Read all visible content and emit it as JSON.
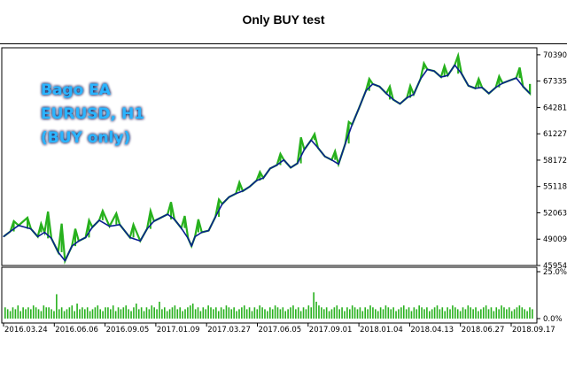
{
  "page": {
    "title": "Only BUY test"
  },
  "overlay": {
    "lines": [
      "Bago EA",
      "EURUSD, H1",
      "(BUY only)"
    ]
  },
  "colors": {
    "background": "#ffffff",
    "frame": "#000000",
    "equity": "#0a1f8f",
    "balance": "#27b11d",
    "volume": "#27b11d",
    "overlay_text": "#2ab4ff",
    "overlay_glow": "#0b1b5a"
  },
  "chart_data": [
    {
      "type": "line",
      "title": "Only BUY test",
      "x": [
        "2016.03.24",
        "2016.06.06",
        "2016.09.05",
        "2017.01.09",
        "2017.03.27",
        "2017.06.05",
        "2017.09.01",
        "2018.01.04",
        "2018.04.13",
        "2018.06.27",
        "2018.09.17"
      ],
      "y_ticks": [
        45954,
        49009,
        52063,
        55118,
        58172,
        61227,
        64281,
        67335,
        70390
      ],
      "ylim": [
        45954,
        71200
      ],
      "series": [
        {
          "role": "equity",
          "values": [
            [
              0,
              49300
            ],
            [
              0.1,
              49900
            ],
            [
              0.22,
              50600
            ],
            [
              0.4,
              50200
            ],
            [
              0.5,
              49300
            ],
            [
              0.6,
              49800
            ],
            [
              0.7,
              49100
            ],
            [
              0.8,
              47500
            ],
            [
              0.9,
              46500
            ],
            [
              1.0,
              48200
            ],
            [
              1.1,
              48800
            ],
            [
              1.2,
              49200
            ],
            [
              1.3,
              50400
            ],
            [
              1.4,
              51200
            ],
            [
              1.55,
              50500
            ],
            [
              1.7,
              50700
            ],
            [
              1.85,
              49200
            ],
            [
              2.0,
              48800
            ],
            [
              2.1,
              50200
            ],
            [
              2.2,
              51100
            ],
            [
              2.3,
              51500
            ],
            [
              2.4,
              51900
            ],
            [
              2.5,
              51300
            ],
            [
              2.6,
              50300
            ],
            [
              2.7,
              49100
            ],
            [
              2.75,
              48200
            ],
            [
              2.8,
              49300
            ],
            [
              2.9,
              49800
            ],
            [
              3.0,
              50000
            ],
            [
              3.1,
              51600
            ],
            [
              3.2,
              53100
            ],
            [
              3.3,
              53900
            ],
            [
              3.4,
              54300
            ],
            [
              3.5,
              54600
            ],
            [
              3.6,
              55100
            ],
            [
              3.7,
              55800
            ],
            [
              3.8,
              56100
            ],
            [
              3.9,
              57200
            ],
            [
              4.0,
              57600
            ],
            [
              4.1,
              58200
            ],
            [
              4.2,
              57300
            ],
            [
              4.3,
              57800
            ],
            [
              4.4,
              59400
            ],
            [
              4.5,
              60500
            ],
            [
              4.6,
              59600
            ],
            [
              4.7,
              58600
            ],
            [
              4.8,
              58200
            ],
            [
              4.9,
              57700
            ],
            [
              5.0,
              60100
            ],
            [
              5.1,
              62300
            ],
            [
              5.2,
              64200
            ],
            [
              5.3,
              66200
            ],
            [
              5.4,
              67000
            ],
            [
              5.5,
              66700
            ],
            [
              5.6,
              65900
            ],
            [
              5.7,
              65200
            ],
            [
              5.8,
              64700
            ],
            [
              5.9,
              65400
            ],
            [
              6.0,
              65800
            ],
            [
              6.1,
              67600
            ],
            [
              6.2,
              68700
            ],
            [
              6.3,
              68500
            ],
            [
              6.4,
              67800
            ],
            [
              6.5,
              68000
            ],
            [
              6.6,
              69200
            ],
            [
              6.7,
              68200
            ],
            [
              6.8,
              66800
            ],
            [
              6.9,
              66500
            ],
            [
              7.0,
              66600
            ],
            [
              7.1,
              65900
            ],
            [
              7.2,
              66600
            ],
            [
              7.3,
              67100
            ],
            [
              7.4,
              67400
            ],
            [
              7.5,
              67700
            ],
            [
              7.6,
              66700
            ],
            [
              7.7,
              65900
            ]
          ]
        },
        {
          "role": "balance",
          "values": [
            [
              0.15,
              51100
            ],
            [
              0.35,
              51500
            ],
            [
              0.55,
              50800
            ],
            [
              0.65,
              52200
            ],
            [
              0.85,
              50800
            ],
            [
              1.05,
              50200
            ],
            [
              1.25,
              51200
            ],
            [
              1.45,
              52300
            ],
            [
              1.65,
              52000
            ],
            [
              1.9,
              50700
            ],
            [
              2.15,
              52300
            ],
            [
              2.45,
              53300
            ],
            [
              2.65,
              51700
            ],
            [
              2.85,
              51300
            ],
            [
              3.15,
              53600
            ],
            [
              3.45,
              55600
            ],
            [
              3.75,
              56800
            ],
            [
              4.05,
              58900
            ],
            [
              4.35,
              60800
            ],
            [
              4.55,
              61200
            ],
            [
              4.85,
              59200
            ],
            [
              5.05,
              62600
            ],
            [
              5.35,
              67600
            ],
            [
              5.65,
              66700
            ],
            [
              5.95,
              66800
            ],
            [
              6.15,
              69400
            ],
            [
              6.45,
              69100
            ],
            [
              6.65,
              70300
            ],
            [
              6.95,
              67600
            ],
            [
              7.25,
              67900
            ],
            [
              7.55,
              68900
            ],
            [
              7.7,
              67000
            ]
          ]
        }
      ]
    },
    {
      "type": "bar",
      "y_ticks": [
        "25.0%",
        "0.0%"
      ],
      "ylim": [
        0,
        25
      ],
      "values": [
        6,
        5,
        4,
        6,
        5,
        7,
        4,
        6,
        5,
        6,
        5,
        7,
        6,
        5,
        4,
        7,
        6,
        6,
        5,
        4,
        13,
        5,
        6,
        4,
        5,
        6,
        7,
        4,
        8,
        5,
        6,
        5,
        6,
        4,
        5,
        6,
        7,
        5,
        4,
        6,
        6,
        5,
        7,
        4,
        6,
        5,
        6,
        7,
        5,
        4,
        6,
        8,
        5,
        6,
        4,
        6,
        5,
        7,
        6,
        5,
        9,
        5,
        6,
        4,
        5,
        6,
        7,
        5,
        6,
        4,
        5,
        6,
        7,
        8,
        5,
        6,
        4,
        6,
        5,
        7,
        6,
        5,
        6,
        4,
        6,
        5,
        7,
        6,
        5,
        6,
        4,
        5,
        6,
        7,
        5,
        6,
        4,
        6,
        5,
        7,
        6,
        5,
        4,
        6,
        5,
        7,
        6,
        5,
        6,
        4,
        5,
        6,
        7,
        5,
        6,
        4,
        6,
        5,
        7,
        6,
        14,
        9,
        7,
        6,
        5,
        6,
        4,
        5,
        6,
        7,
        5,
        6,
        4,
        6,
        5,
        7,
        6,
        5,
        6,
        4,
        6,
        5,
        7,
        6,
        5,
        4,
        6,
        5,
        7,
        6,
        5,
        6,
        4,
        5,
        6,
        7,
        5,
        6,
        4,
        6,
        5,
        7,
        6,
        5,
        6,
        4,
        5,
        6,
        7,
        5,
        6,
        4,
        6,
        5,
        7,
        6,
        5,
        4,
        6,
        5,
        7,
        6,
        5,
        6,
        4,
        5,
        6,
        7,
        5,
        6,
        4,
        6,
        5,
        7,
        6,
        5,
        6,
        4,
        5,
        6,
        7,
        6,
        5,
        4,
        6,
        5
      ]
    }
  ]
}
